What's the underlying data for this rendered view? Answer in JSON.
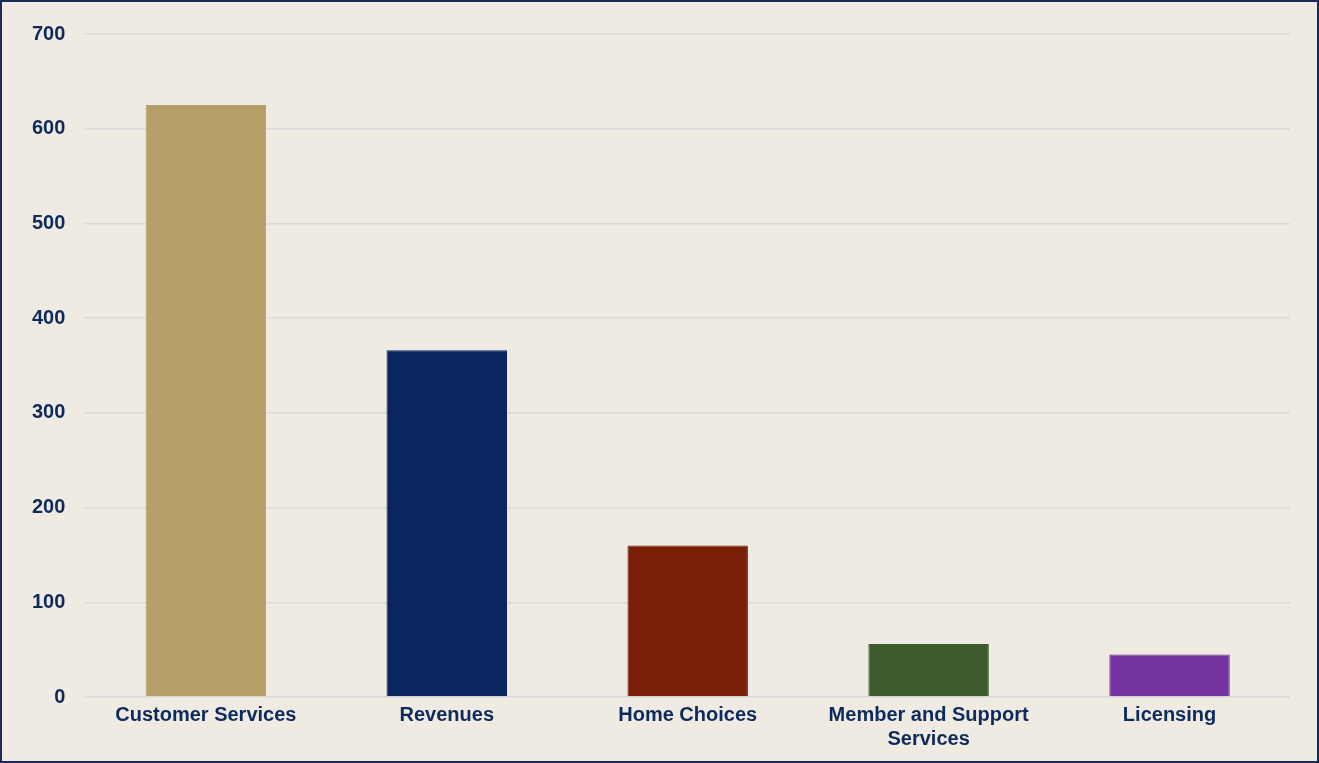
{
  "chart_data": {
    "type": "bar",
    "categories": [
      "Customer Services",
      "Revenues",
      "Home Choices",
      "Member and Support Services",
      "Licensing"
    ],
    "values": [
      625,
      366,
      160,
      56,
      45
    ],
    "colors": [
      "#b5a06a",
      "#0a2560",
      "#7a1e08",
      "#3d5a2a",
      "#7535a0"
    ],
    "ylim": [
      0,
      700
    ],
    "yticks": [
      0,
      100,
      200,
      300,
      400,
      500,
      600,
      700
    ],
    "grid": "y",
    "legend": false
  }
}
